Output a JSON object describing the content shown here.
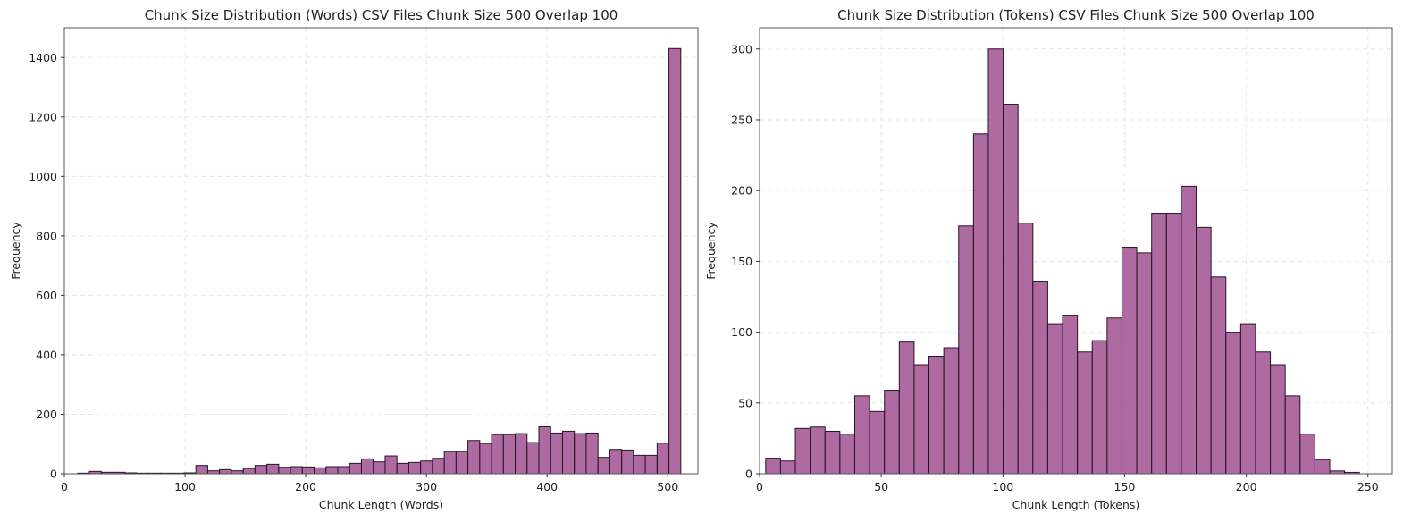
{
  "chart_data": [
    {
      "type": "histogram",
      "title": "Chunk Size Distribution (Words) CSV Files Chunk Size 500 Overlap 100",
      "xlabel": "Chunk Length (Words)",
      "ylabel": "Frequency",
      "xlim": [
        0,
        525
      ],
      "ylim": [
        0,
        1500
      ],
      "xticks": [
        0,
        100,
        200,
        300,
        400,
        500
      ],
      "yticks": [
        0,
        200,
        400,
        600,
        800,
        1000,
        1200,
        1400
      ],
      "grid": true,
      "color": "#9b4a8c",
      "edgecolor": "#2a1426",
      "bin_start": 11,
      "bin_width": 9.8,
      "values": [
        2,
        8,
        5,
        5,
        3,
        2,
        2,
        2,
        2,
        3,
        28,
        10,
        14,
        10,
        18,
        28,
        32,
        22,
        24,
        23,
        20,
        24,
        24,
        35,
        50,
        40,
        60,
        35,
        38,
        43,
        52,
        75,
        75,
        112,
        102,
        132,
        132,
        135,
        105,
        158,
        137,
        143,
        135,
        137,
        55,
        82,
        80,
        62,
        62,
        103,
        1430
      ]
    },
    {
      "type": "histogram",
      "title": "Chunk Size Distribution (Tokens) CSV Files Chunk Size 500 Overlap 100",
      "xlabel": "Chunk Length (Tokens)",
      "ylabel": "Frequency",
      "xlim": [
        0,
        260
      ],
      "ylim": [
        0,
        315
      ],
      "xticks": [
        0,
        50,
        100,
        150,
        200,
        250
      ],
      "yticks": [
        0,
        50,
        100,
        150,
        200,
        250,
        300
      ],
      "grid": true,
      "color": "#9b4a8c",
      "edgecolor": "#2a1426",
      "bin_start": 2.5,
      "bin_width": 6.1,
      "values": [
        11,
        9,
        32,
        33,
        30,
        28,
        55,
        44,
        59,
        93,
        77,
        83,
        89,
        175,
        240,
        300,
        261,
        177,
        136,
        106,
        112,
        86,
        94,
        110,
        160,
        156,
        184,
        184,
        203,
        174,
        139,
        100,
        106,
        86,
        77,
        55,
        28,
        10,
        2,
        1
      ]
    }
  ]
}
